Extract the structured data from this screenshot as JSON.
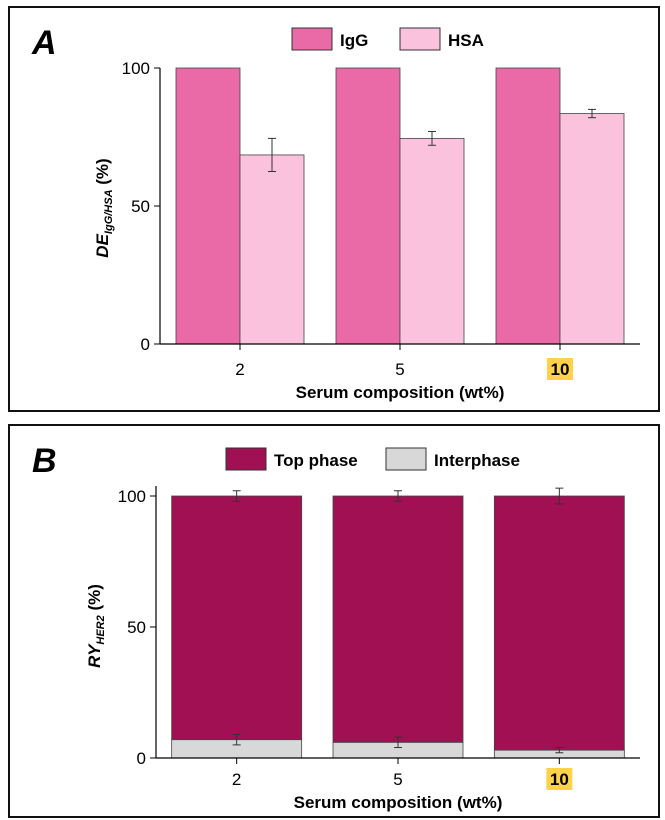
{
  "colors": {
    "igg": "#ea6aa8",
    "hsa": "#fac2dc",
    "top_phase": "#a01052",
    "interphase": "#d8d8d8",
    "highlight": "#ffd24a"
  },
  "chart_data": [
    {
      "panel_label": "A",
      "type": "bar",
      "categories": [
        "2",
        "5",
        "10"
      ],
      "highlight_category": "10",
      "series": [
        {
          "name": "IgG",
          "values": [
            100,
            100,
            100
          ],
          "errors": [
            0,
            0,
            0
          ]
        },
        {
          "name": "HSA",
          "values": [
            68.5,
            74.5,
            83.5
          ],
          "errors": [
            6,
            2.5,
            1.5
          ]
        }
      ],
      "ylabel_main": "DE",
      "ylabel_sub": "IgG/HSA",
      "ylabel_unit": " (%)",
      "xlabel": "Serum composition (wt%)",
      "ylim": [
        0,
        100
      ],
      "yticks": [
        "0",
        "50",
        "100"
      ],
      "legend_position": "top-center"
    },
    {
      "panel_label": "B",
      "type": "stacked-bar",
      "categories": [
        "2",
        "5",
        "10"
      ],
      "highlight_category": "10",
      "series": [
        {
          "name": "Top phase",
          "values": [
            93,
            94,
            97
          ],
          "errors": [
            2,
            2,
            3
          ]
        },
        {
          "name": "Interphase",
          "values": [
            7,
            6,
            3
          ],
          "errors": [
            2,
            2,
            1
          ]
        }
      ],
      "ylabel_main": "RY",
      "ylabel_sub": "HER2",
      "ylabel_unit": " (%)",
      "xlabel": "Serum composition (wt%)",
      "ylim": [
        0,
        100
      ],
      "yticks": [
        "0",
        "50",
        "100"
      ],
      "legend_position": "top-center"
    }
  ]
}
